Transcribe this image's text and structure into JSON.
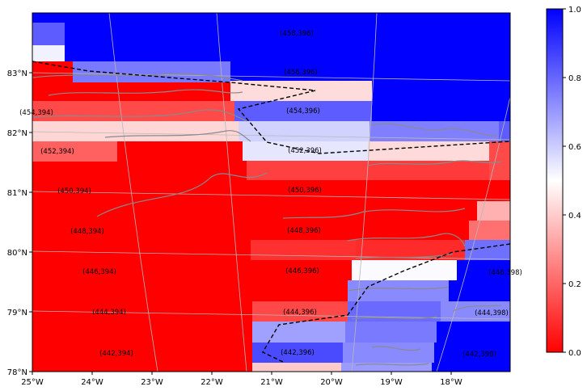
{
  "map": {
    "lon_labels": [
      "25°W",
      "24°W",
      "23°W",
      "22°W",
      "21°W",
      "20°W",
      "19°W",
      "18°W"
    ],
    "lat_labels": [
      "83°N",
      "82°N",
      "81°N",
      "80°N",
      "79°N",
      "78°N"
    ],
    "cell_labels": [
      "(458,396)",
      "(456,396)",
      "(454,394)",
      "(454,396)",
      "(452,394)",
      "(452,396)",
      "(450,394)",
      "(450,396)",
      "(448,394)",
      "(448,396)",
      "(446,394)",
      "(446,396)",
      "(446,398)",
      "(444,394)",
      "(444,396)",
      "(444,398)",
      "(442,394)",
      "(442,396)",
      "(442,398)"
    ]
  },
  "colorbar": {
    "ticks": [
      "0.0",
      "0.2",
      "0.4",
      "0.6",
      "0.8",
      "1.0"
    ],
    "colors": {
      "min": "#ff0000",
      "mid": "#ffffff",
      "max": "#0000ff"
    },
    "colormap": "bwr_r"
  }
}
